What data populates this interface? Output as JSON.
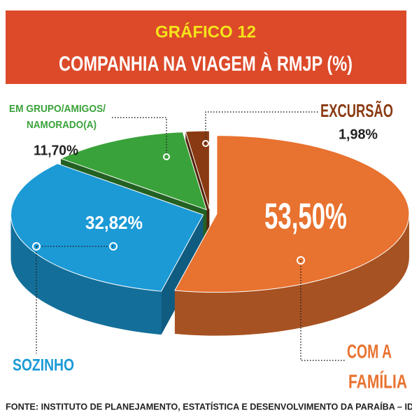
{
  "chart_data": {
    "type": "pie3d",
    "kicker": "GRÁFICO 12",
    "title": "COMPANHIA NA VIAGEM À RMJP (%)",
    "categories": [
      [
        "COM A",
        "FAMÍLIA"
      ],
      [
        "SOZINHO"
      ],
      [
        "EM GRUPO/AMIGOS/",
        "NAMORADO(A)"
      ],
      [
        "EXCURSÃO"
      ]
    ],
    "values": [
      53.5,
      32.82,
      11.7,
      1.98
    ],
    "value_labels": [
      "53,50%",
      "32,82%",
      "11,70%",
      "1,98%"
    ],
    "colors": [
      "#e8722f",
      "#1b9ad6",
      "#3aa23a",
      "#8a3a12"
    ],
    "source": "FONTE: INSTITUTO DE PLANEJAMENTO, ESTATÍSTICA E DESENVOLVIMENTO DA PARAÍBA – IDEP"
  }
}
